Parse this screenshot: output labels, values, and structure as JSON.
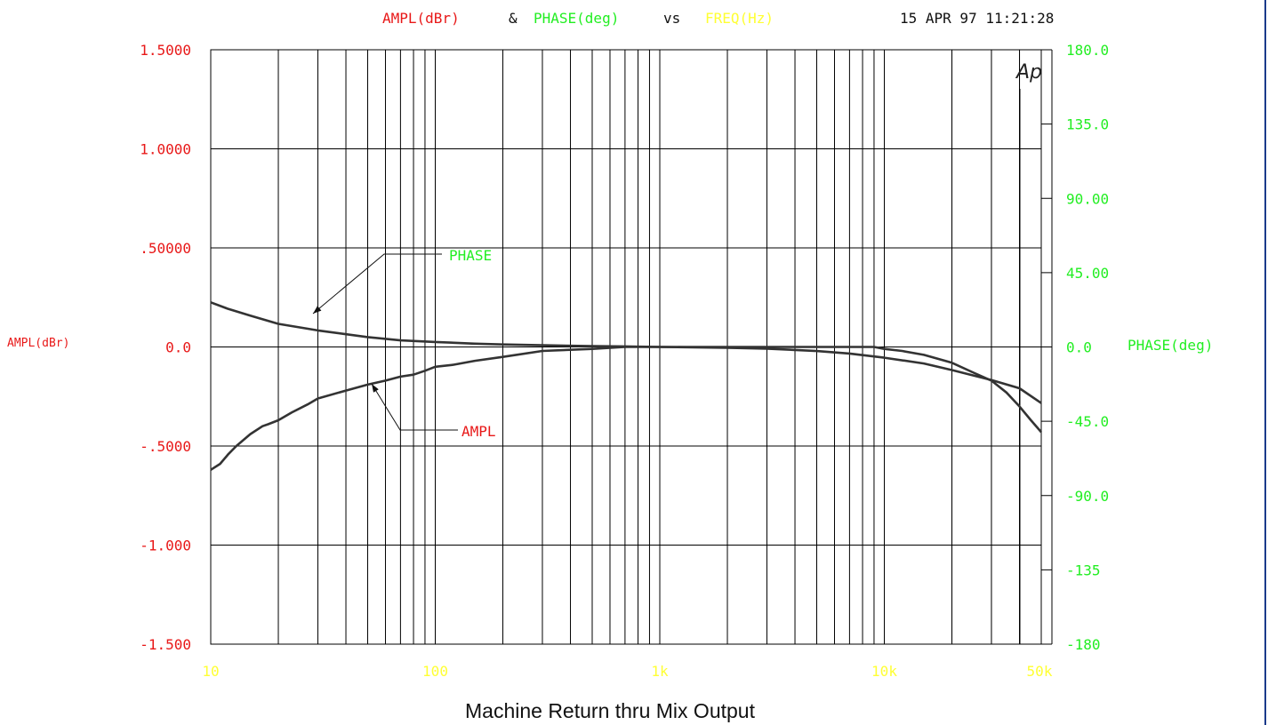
{
  "header": {
    "title_ampl": "AMPL(dBr)",
    "title_amp": "&",
    "title_phase": "PHASE(deg)",
    "title_vs": "vs",
    "title_freq": "FREQ(Hz)",
    "timestamp": "15 APR 97 11:21:28",
    "logo": "Ap"
  },
  "caption": "Machine Return thru Mix Output",
  "colors": {
    "ampl": "#e81818",
    "phase": "#22ee22",
    "freq": "#ffff33",
    "text": "#111111",
    "grid": "#000000",
    "curve": "#333333"
  },
  "chart_data": {
    "type": "line",
    "xscale": "log",
    "xlim": [
      10,
      50000
    ],
    "x_ticks": [
      {
        "value": 10,
        "label": "10"
      },
      {
        "value": 100,
        "label": "100"
      },
      {
        "value": 1000,
        "label": "1k"
      },
      {
        "value": 10000,
        "label": "10k"
      },
      {
        "value": 50000,
        "label": "50k"
      }
    ],
    "ylabel_left": "AMPL(dBr)",
    "ylim_left": [
      -1.5,
      1.5
    ],
    "y_ticks_left": [
      {
        "value": 1.5,
        "label": "1.5000"
      },
      {
        "value": 1.0,
        "label": "1.0000"
      },
      {
        "value": 0.5,
        "label": ".50000"
      },
      {
        "value": 0.0,
        "label": "0.0"
      },
      {
        "value": -0.5,
        "label": "-.5000"
      },
      {
        "value": -1.0,
        "label": "-1.000"
      },
      {
        "value": -1.5,
        "label": "-1.500"
      }
    ],
    "ylabel_right": "PHASE(deg)",
    "ylim_right": [
      -180,
      180
    ],
    "y_ticks_right": [
      {
        "value": 180,
        "label": "180.0"
      },
      {
        "value": 135,
        "label": "135.0"
      },
      {
        "value": 90,
        "label": "90.00"
      },
      {
        "value": 45,
        "label": "45.00"
      },
      {
        "value": 0,
        "label": "0.0"
      },
      {
        "value": -45,
        "label": "-45.0"
      },
      {
        "value": -90,
        "label": "-90.0"
      },
      {
        "value": -135,
        "label": "-135"
      },
      {
        "value": -180,
        "label": "-180"
      }
    ],
    "grid": true,
    "series": [
      {
        "name": "PHASE",
        "axis": "right",
        "x": [
          10,
          12,
          15,
          20,
          30,
          50,
          70,
          100,
          150,
          200,
          300,
          500,
          700,
          1000,
          2000,
          3000,
          5000,
          7000,
          10000,
          15000,
          20000,
          30000,
          40000,
          50000
        ],
        "y": [
          27,
          23,
          19,
          14,
          10,
          6,
          4,
          3,
          2,
          1.5,
          1,
          0.5,
          0.3,
          0,
          -0.5,
          -1,
          -2.5,
          -4,
          -6.5,
          -10,
          -14,
          -20,
          -25,
          -34
        ]
      },
      {
        "name": "AMPL",
        "axis": "left",
        "x": [
          10,
          11,
          12,
          13,
          15,
          17,
          18,
          20,
          23,
          27,
          30,
          40,
          50,
          60,
          70,
          80,
          90,
          100,
          120,
          150,
          200,
          300,
          500,
          700,
          1000,
          2000,
          3000,
          5000,
          7000,
          8000,
          9000,
          10000,
          12000,
          15000,
          20000,
          25000,
          30000,
          35000,
          40000,
          45000,
          50000
        ],
        "y": [
          -0.62,
          -0.59,
          -0.54,
          -0.5,
          -0.44,
          -0.4,
          -0.39,
          -0.37,
          -0.33,
          -0.29,
          -0.26,
          -0.22,
          -0.19,
          -0.17,
          -0.15,
          -0.14,
          -0.12,
          -0.1,
          -0.09,
          -0.07,
          -0.05,
          -0.02,
          -0.01,
          0,
          0,
          0,
          0,
          0,
          0,
          0,
          0,
          -0.01,
          -0.02,
          -0.04,
          -0.08,
          -0.13,
          -0.17,
          -0.23,
          -0.3,
          -0.37,
          -0.43
        ]
      }
    ],
    "annotations": [
      {
        "text": "PHASE",
        "color": "phase",
        "target_x": 30,
        "target_y_right": 10
      },
      {
        "text": "AMPL",
        "color": "ampl",
        "target_x": 50,
        "target_y_left": -0.19
      }
    ],
    "marker_lines": [
      40000,
      50000
    ]
  }
}
